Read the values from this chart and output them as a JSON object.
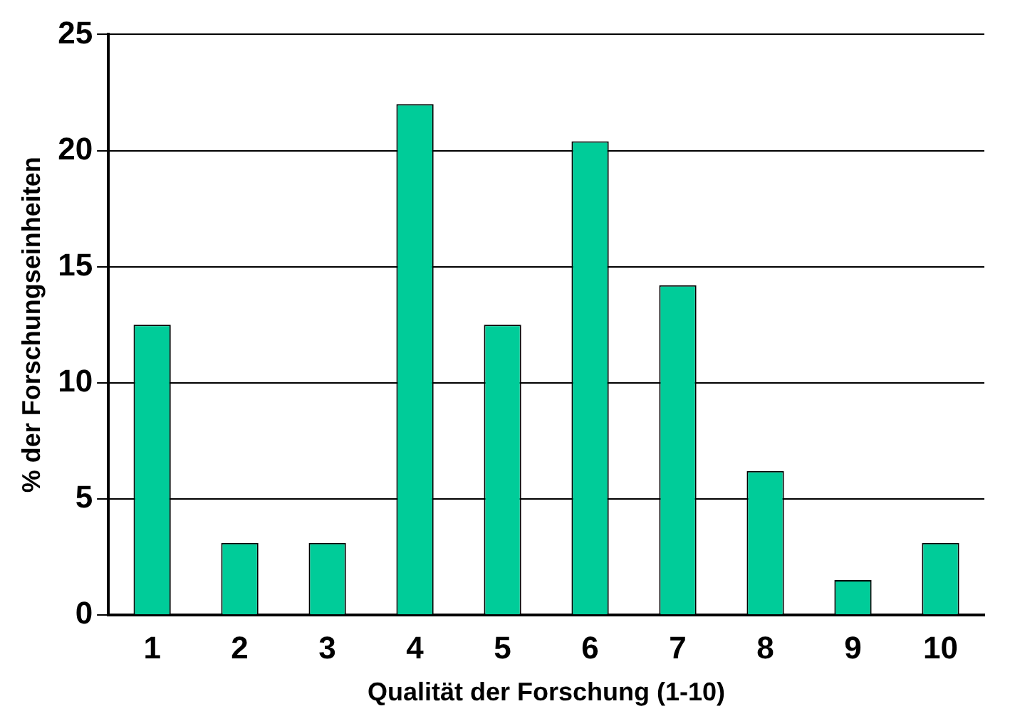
{
  "chart_data": {
    "type": "bar",
    "xlabel": "Qualität der Forschung (1-10)",
    "ylabel": "% der Forschungseinheiten",
    "categories": [
      "1",
      "2",
      "3",
      "4",
      "5",
      "6",
      "7",
      "8",
      "9",
      "10"
    ],
    "values": [
      12.5,
      3.1,
      3.1,
      22,
      12.5,
      20.4,
      14.2,
      6.2,
      1.5,
      3.1
    ],
    "color": "#00cc99",
    "ylim": [
      0,
      25
    ],
    "yticks": [
      0,
      5,
      10,
      15,
      20,
      25
    ],
    "grid": "y",
    "legend": false
  }
}
